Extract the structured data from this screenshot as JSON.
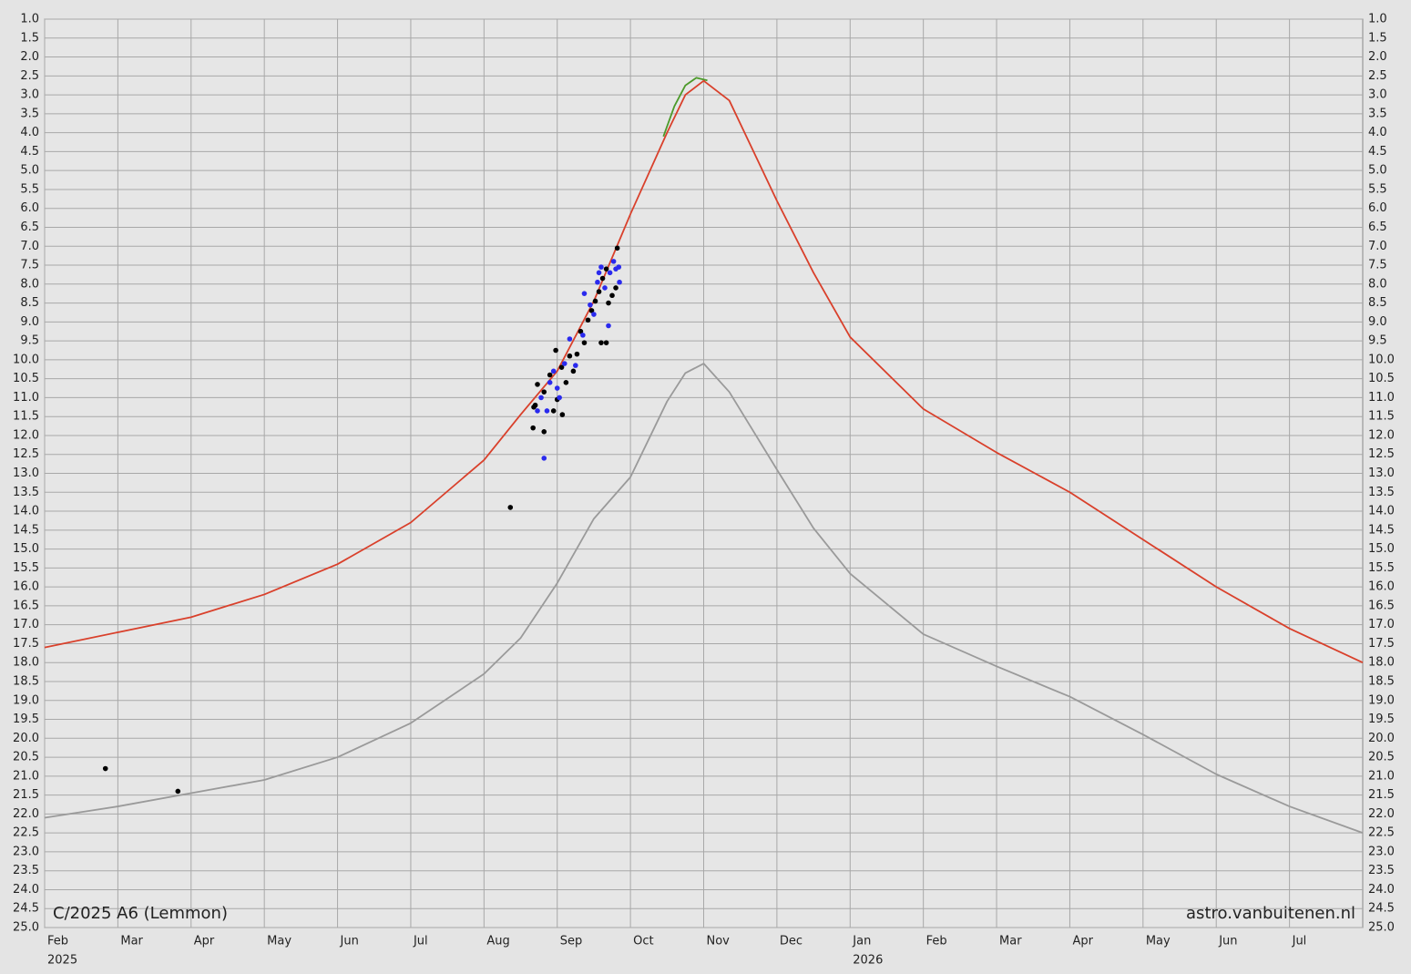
{
  "chart_data": {
    "type": "line",
    "annotations": [
      "C/2025 A6 (Lemmon)",
      "astro.vanbuitenen.nl"
    ],
    "xlim": [
      0,
      18
    ],
    "xticks": [
      {
        "value": 0,
        "label": "Feb"
      },
      {
        "value": 1,
        "label": "Mar"
      },
      {
        "value": 2,
        "label": "Apr"
      },
      {
        "value": 3,
        "label": "May"
      },
      {
        "value": 4,
        "label": "Jun"
      },
      {
        "value": 5,
        "label": "Jul"
      },
      {
        "value": 6,
        "label": "Aug"
      },
      {
        "value": 7,
        "label": "Sep"
      },
      {
        "value": 8,
        "label": "Oct"
      },
      {
        "value": 9,
        "label": "Nov"
      },
      {
        "value": 10,
        "label": "Dec"
      },
      {
        "value": 11,
        "label": "Jan"
      },
      {
        "value": 12,
        "label": "Feb"
      },
      {
        "value": 13,
        "label": "Mar"
      },
      {
        "value": 14,
        "label": "Apr"
      },
      {
        "value": 15,
        "label": "May"
      },
      {
        "value": 16,
        "label": "Jun"
      },
      {
        "value": 17,
        "label": "Jul"
      }
    ],
    "year_labels": [
      {
        "value": 0,
        "label": "2025"
      },
      {
        "value": 11,
        "label": "2026"
      }
    ],
    "ylim": [
      1,
      25
    ],
    "y_inverted": true,
    "grid": true,
    "yticks": [
      {
        "value": 1,
        "label": "1.0"
      },
      1.5,
      {
        "value": 2,
        "label": "2.0"
      },
      2.5,
      {
        "value": 3,
        "label": "3.0"
      },
      3.5,
      {
        "value": 4,
        "label": "4.0"
      },
      4.5,
      {
        "value": 5,
        "label": "5.0"
      },
      5.5,
      {
        "value": 6,
        "label": "6.0"
      },
      6.5,
      {
        "value": 7,
        "label": "7.0"
      },
      7.5,
      {
        "value": 8,
        "label": "8.0"
      },
      8.5,
      {
        "value": 9,
        "label": "9.0"
      },
      9.5,
      {
        "value": 10,
        "label": "10.0"
      },
      10.5,
      {
        "value": 11,
        "label": "11.0"
      },
      11.5,
      {
        "value": 12,
        "label": "12.0"
      },
      12.5,
      {
        "value": 13,
        "label": "13.0"
      },
      13.5,
      {
        "value": 14,
        "label": "14.0"
      },
      14.5,
      {
        "value": 15,
        "label": "15.0"
      },
      15.5,
      {
        "value": 16,
        "label": "16.0"
      },
      16.5,
      {
        "value": 17,
        "label": "17.0"
      },
      17.5,
      {
        "value": 18,
        "label": "18.0"
      },
      18.5,
      {
        "value": 19,
        "label": "19.0"
      },
      19.5,
      {
        "value": 20,
        "label": "20.0"
      },
      20.5,
      {
        "value": 21,
        "label": "21.0"
      },
      21.5,
      {
        "value": 22,
        "label": "22.0"
      },
      22.5,
      {
        "value": 23,
        "label": "23.0"
      },
      23.5,
      {
        "value": 24,
        "label": "24.0"
      },
      24.5,
      {
        "value": 25,
        "label": "25.0"
      }
    ],
    "series": [
      {
        "mode": "line",
        "color": "#9a9a9a",
        "x": [
          0,
          1,
          2,
          3,
          4,
          5,
          6,
          6.5,
          7,
          7.5,
          8,
          8.5,
          8.75,
          9,
          9.35,
          10,
          10.5,
          11,
          12,
          13,
          14,
          15,
          16,
          17,
          18
        ],
        "values": [
          22.1,
          21.8,
          21.45,
          21.1,
          20.5,
          19.6,
          18.3,
          17.35,
          15.9,
          14.2,
          13.1,
          11.1,
          10.35,
          10.1,
          10.85,
          12.9,
          14.45,
          15.65,
          17.25,
          18.1,
          18.9,
          19.9,
          20.95,
          21.8,
          22.5
        ]
      },
      {
        "mode": "line",
        "color": "#4c9a2a",
        "x": [
          8.45,
          8.6,
          8.75,
          8.9,
          9.05
        ],
        "values": [
          4.1,
          3.3,
          2.75,
          2.55,
          2.62
        ]
      },
      {
        "mode": "line",
        "color": "#d9402b",
        "x": [
          0,
          1,
          2,
          3,
          4,
          5,
          6,
          6.5,
          7,
          7.5,
          8,
          8.5,
          8.75,
          9,
          9.35,
          10,
          10.5,
          11,
          12,
          13,
          14,
          15,
          16,
          17,
          18
        ],
        "values": [
          17.6,
          17.2,
          16.8,
          16.2,
          15.4,
          14.3,
          12.65,
          11.45,
          10.3,
          8.45,
          6.15,
          4.0,
          3.0,
          2.63,
          3.15,
          5.8,
          7.7,
          9.4,
          11.3,
          12.45,
          13.5,
          14.75,
          16.0,
          17.1,
          18.0
        ]
      },
      {
        "mode": "markers",
        "color": "#000000",
        "x": [
          0.83,
          1.82,
          6.36,
          6.67,
          6.82,
          6.68,
          6.73,
          6.82,
          6.9,
          6.98,
          7.0,
          7.07,
          7.06,
          7.12,
          7.17,
          7.22,
          7.27,
          7.32,
          7.37,
          7.42,
          7.47,
          7.52,
          7.57,
          7.6,
          7.67,
          7.62,
          7.67,
          7.7,
          7.75,
          7.8,
          7.82,
          6.95,
          6.7
        ],
        "values": [
          20.8,
          21.4,
          13.9,
          11.8,
          11.9,
          11.25,
          10.65,
          10.85,
          10.4,
          9.75,
          11.05,
          11.45,
          10.2,
          10.6,
          9.9,
          10.3,
          9.85,
          9.25,
          9.55,
          8.95,
          8.7,
          8.45,
          8.2,
          9.55,
          9.55,
          7.85,
          7.6,
          8.5,
          8.3,
          8.1,
          7.05,
          11.35,
          11.2
        ]
      },
      {
        "mode": "markers",
        "color": "#2a2aee",
        "x": [
          6.82,
          6.73,
          6.86,
          6.78,
          6.9,
          6.95,
          7.03,
          7.1,
          7.17,
          7.25,
          7.35,
          7.37,
          7.45,
          7.5,
          7.55,
          7.57,
          7.6,
          7.65,
          7.7,
          7.72,
          7.77,
          7.8,
          7.84,
          7.85,
          7.0
        ],
        "values": [
          12.6,
          11.35,
          11.35,
          11.0,
          10.6,
          10.3,
          11.0,
          10.1,
          9.45,
          10.15,
          9.35,
          8.25,
          8.55,
          8.8,
          7.95,
          7.7,
          7.55,
          8.1,
          9.1,
          7.7,
          7.4,
          7.6,
          7.55,
          7.95,
          10.75
        ]
      }
    ]
  }
}
